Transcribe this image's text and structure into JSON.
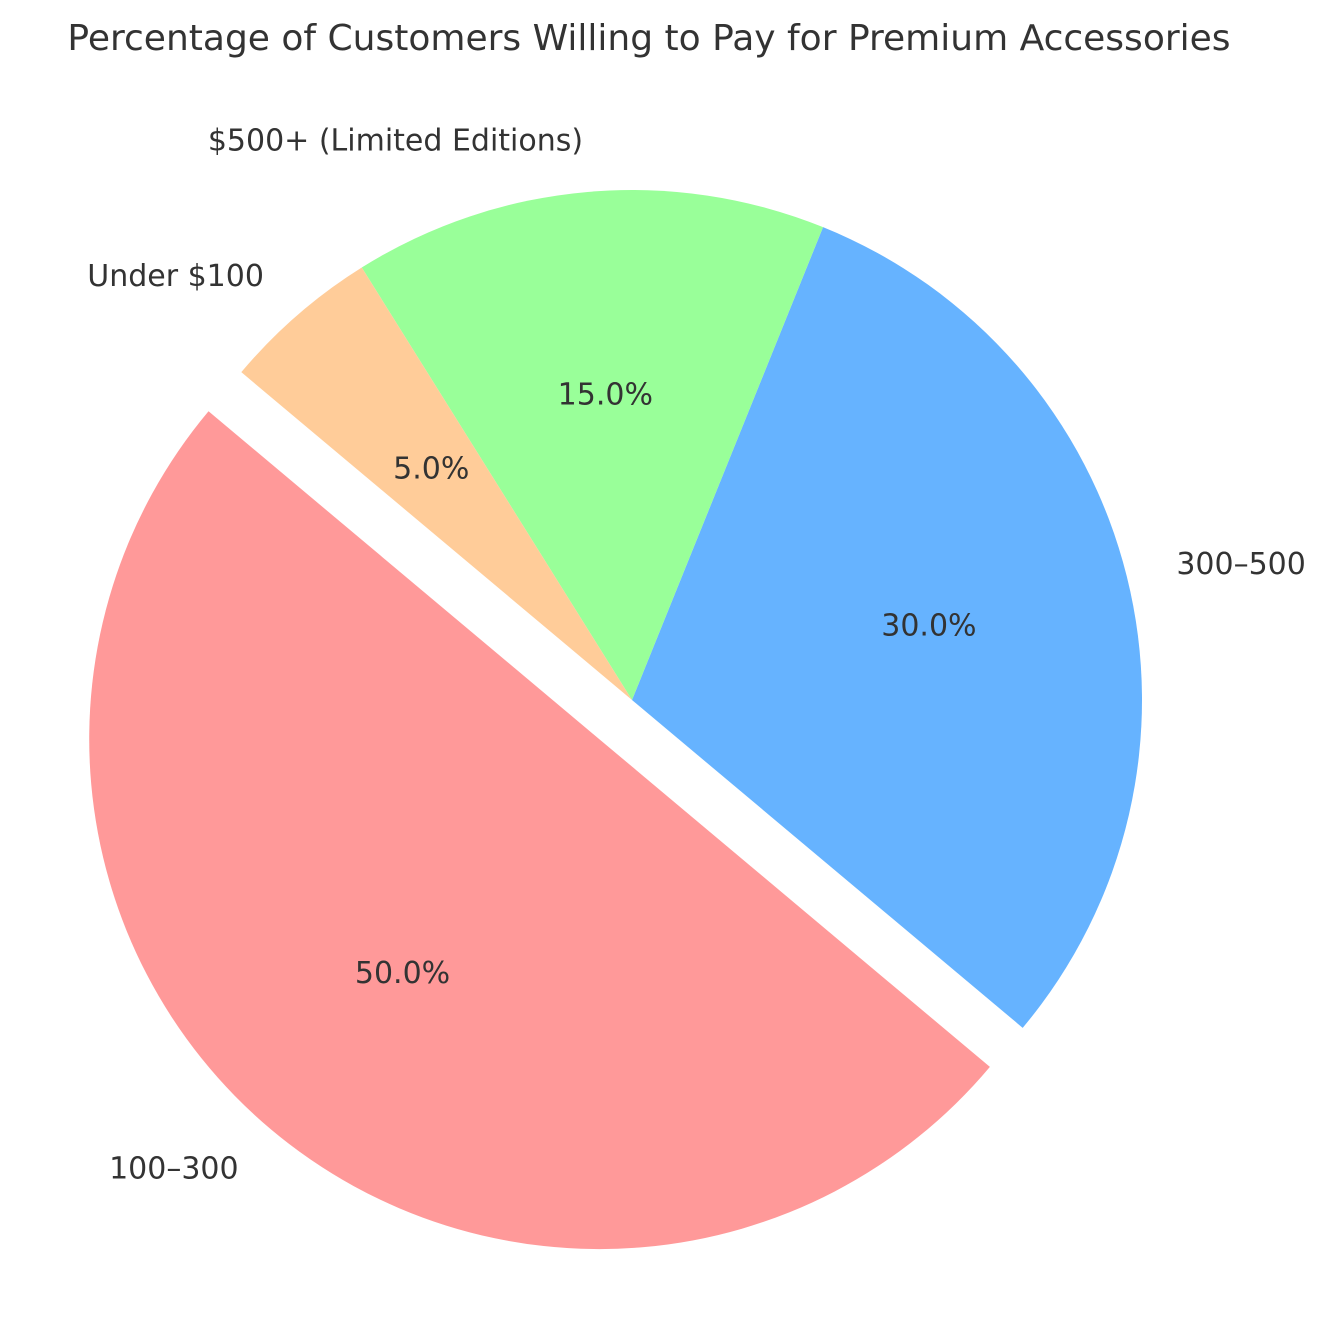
{
  "chart_data": {
    "type": "pie",
    "title": "Percentage of Customers Willing to Pay for Premium Accessories",
    "start_angle_deg": 140,
    "direction": "counterclockwise",
    "exploded_slice_index": 0,
    "slices": [
      {
        "label": "100–300",
        "value": 50,
        "pct_label": "50.0%",
        "color": "#ff9999",
        "exploded": true
      },
      {
        "label": "300–500",
        "value": 30,
        "pct_label": "30.0%",
        "color": "#66b3ff",
        "exploded": false
      },
      {
        "label": "$500+ (Limited Editions)",
        "value": 15,
        "pct_label": "15.0%",
        "color": "#99ff99",
        "exploded": false
      },
      {
        "label": "Under $100",
        "value": 5,
        "pct_label": "5.0%",
        "color": "#ffcc99",
        "exploded": false
      }
    ]
  }
}
